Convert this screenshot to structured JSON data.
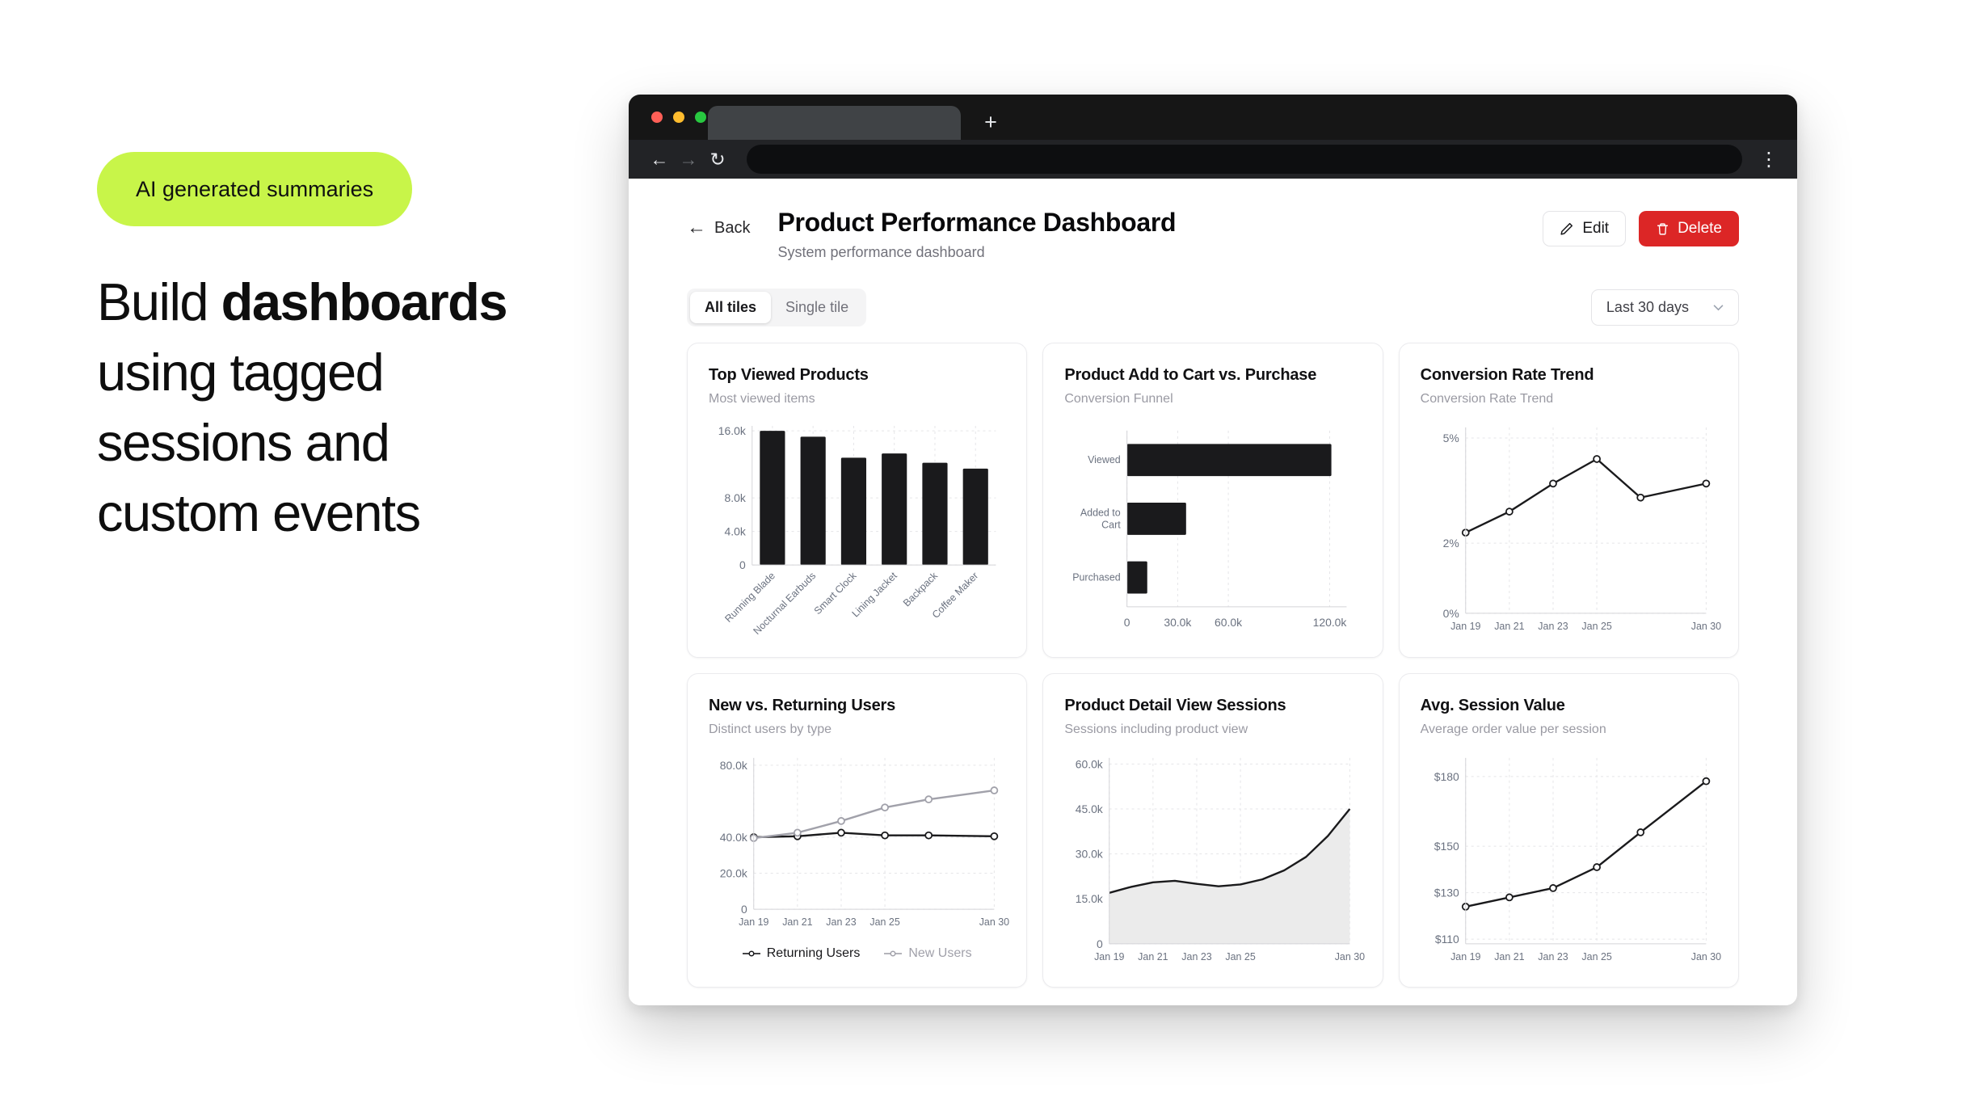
{
  "left_panel": {
    "badge": "AI generated summaries",
    "headline": {
      "l1a": "Build ",
      "l1b": "dashboards",
      "l2": "using tagged",
      "l3": "sessions and",
      "l4": "custom events"
    }
  },
  "colors": {
    "accent_green": "#c8f549",
    "delete_red": "#dc2626",
    "chart_ink": "#1a1a1c",
    "muted_gray": "#a1a1aa"
  },
  "browser": {
    "back": "←",
    "forward": "→",
    "reload": "↻",
    "menu": "⋮",
    "new_tab": "+"
  },
  "page_header": {
    "back_label": "Back",
    "title": "Product Performance Dashboard",
    "subtitle": "System performance dashboard",
    "edit_label": "Edit",
    "delete_label": "Delete"
  },
  "controls": {
    "tabs": [
      {
        "label": "All tiles"
      },
      {
        "label": "Single tile"
      }
    ],
    "range_select": "Last 30 days"
  },
  "chart_data": [
    {
      "type": "bar",
      "title": "Top Viewed Products",
      "subtitle": "Most viewed items",
      "categories": [
        "Running Blade",
        "Nocturnal Earbuds",
        "Smart Clock",
        "Lining Jacket",
        "Backpack",
        "Coffee Maker"
      ],
      "values": [
        16000,
        15300,
        12800,
        13300,
        12200,
        11500
      ],
      "ylim": [
        0,
        16600
      ],
      "yticks": [
        {
          "v": 0,
          "label": "0"
        },
        {
          "v": 4000,
          "label": "4.0k"
        },
        {
          "v": 8000,
          "label": "8.0k"
        },
        {
          "v": 16000,
          "label": "16.0k"
        }
      ],
      "color": "#1a1a1c"
    },
    {
      "type": "hbar",
      "title": "Product Add to Cart vs. Purchase",
      "subtitle": "Conversion Funnel",
      "categories": [
        "Viewed",
        "Added to\nCart",
        "Purchased"
      ],
      "values": [
        121000,
        35000,
        12000
      ],
      "xlim": [
        0,
        130000
      ],
      "xticks": [
        {
          "v": 0,
          "label": "0"
        },
        {
          "v": 30000,
          "label": "30.0k"
        },
        {
          "v": 60000,
          "label": "60.0k"
        },
        {
          "v": 120000,
          "label": "120.0k"
        }
      ],
      "color": "#1a1a1c"
    },
    {
      "type": "line",
      "title": "Conversion Rate Trend",
      "subtitle": "Conversion Rate Trend",
      "x_days": [
        19,
        21,
        23,
        25,
        27,
        30
      ],
      "xticks": [
        {
          "d": 19,
          "label": "Jan 19"
        },
        {
          "d": 21,
          "label": "Jan 21"
        },
        {
          "d": 23,
          "label": "Jan 23"
        },
        {
          "d": 25,
          "label": "Jan 25"
        },
        {
          "d": 30,
          "label": "Jan 30"
        }
      ],
      "ylim": [
        0,
        5.3
      ],
      "yticks": [
        {
          "v": 0,
          "label": "0%"
        },
        {
          "v": 2,
          "label": "2%"
        },
        {
          "v": 5,
          "label": "5%"
        }
      ],
      "series": [
        {
          "name": "Conversion Rate",
          "color": "#1a1a1c",
          "markers": true,
          "values": [
            2.3,
            2.9,
            3.7,
            4.4,
            3.3,
            3.7
          ]
        }
      ]
    },
    {
      "type": "line",
      "title": "New vs. Returning Users",
      "subtitle": "Distinct users by type",
      "x_days": [
        19,
        21,
        23,
        25,
        27,
        30
      ],
      "xticks": [
        {
          "d": 19,
          "label": "Jan 19"
        },
        {
          "d": 21,
          "label": "Jan 21"
        },
        {
          "d": 23,
          "label": "Jan 23"
        },
        {
          "d": 25,
          "label": "Jan 25"
        },
        {
          "d": 30,
          "label": "Jan 30"
        }
      ],
      "ylim": [
        0,
        84000
      ],
      "yticks": [
        {
          "v": 0,
          "label": "0"
        },
        {
          "v": 20000,
          "label": "20.0k"
        },
        {
          "v": 40000,
          "label": "40.0k"
        },
        {
          "v": 80000,
          "label": "80.0k"
        }
      ],
      "series": [
        {
          "name": "Returning Users",
          "color": "#1a1a1c",
          "markers": true,
          "values": [
            40000,
            40500,
            42500,
            41000,
            41000,
            40500
          ]
        },
        {
          "name": "New Users",
          "color": "#a1a1aa",
          "markers": true,
          "values": [
            39500,
            42500,
            49000,
            56500,
            61000,
            66000
          ]
        }
      ]
    },
    {
      "type": "area",
      "title": "Product Detail View Sessions",
      "subtitle": "Sessions including product view",
      "x_days": [
        19,
        20,
        21,
        22,
        23,
        24,
        25,
        26,
        27,
        28,
        29,
        30
      ],
      "xticks": [
        {
          "d": 19,
          "label": "Jan 19"
        },
        {
          "d": 21,
          "label": "Jan 21"
        },
        {
          "d": 23,
          "label": "Jan 23"
        },
        {
          "d": 25,
          "label": "Jan 25"
        },
        {
          "d": 30,
          "label": "Jan 30"
        }
      ],
      "ylim": [
        0,
        62000
      ],
      "yticks": [
        {
          "v": 0,
          "label": "0"
        },
        {
          "v": 15000,
          "label": "15.0k"
        },
        {
          "v": 30000,
          "label": "30.0k"
        },
        {
          "v": 45000,
          "label": "45.0k"
        },
        {
          "v": 60000,
          "label": "60.0k"
        }
      ],
      "series": [
        {
          "name": "Sessions",
          "color": "#1a1a1c",
          "markers": false,
          "area": true,
          "fill": "#ebebeb",
          "values": [
            17000,
            19000,
            20500,
            21000,
            20000,
            19200,
            19800,
            21500,
            24500,
            29000,
            36000,
            45000
          ]
        }
      ]
    },
    {
      "type": "line",
      "title": "Avg. Session Value",
      "subtitle": "Average order value per session",
      "x_days": [
        19,
        21,
        23,
        25,
        27,
        30
      ],
      "xticks": [
        {
          "d": 19,
          "label": "Jan 19"
        },
        {
          "d": 21,
          "label": "Jan 21"
        },
        {
          "d": 23,
          "label": "Jan 23"
        },
        {
          "d": 25,
          "label": "Jan 25"
        },
        {
          "d": 30,
          "label": "Jan 30"
        }
      ],
      "ylim": [
        108,
        188
      ],
      "yticks": [
        {
          "v": 110,
          "label": "$110"
        },
        {
          "v": 130,
          "label": "$130"
        },
        {
          "v": 150,
          "label": "$150"
        },
        {
          "v": 180,
          "label": "$180"
        }
      ],
      "series": [
        {
          "name": "Avg. Session Value",
          "color": "#1a1a1c",
          "markers": true,
          "values": [
            124,
            128,
            132,
            141,
            156,
            178
          ]
        }
      ]
    }
  ]
}
